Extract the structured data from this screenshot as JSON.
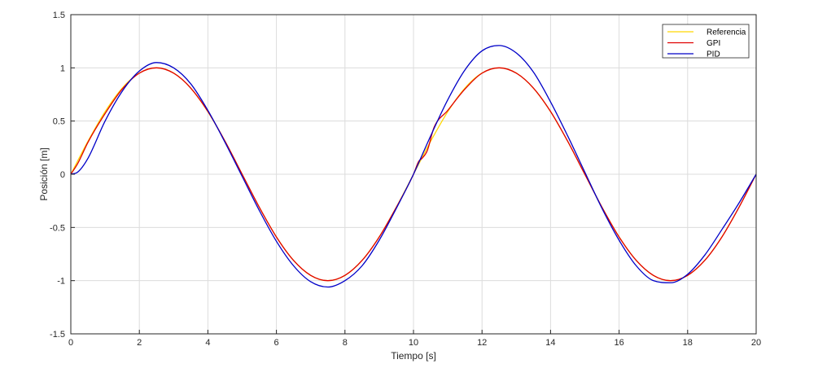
{
  "chart_data": {
    "type": "line",
    "title": "",
    "xlabel": "Tiempo [s]",
    "ylabel": "Posición [m]",
    "xlim": [
      0,
      20
    ],
    "ylim": [
      -1.5,
      1.5
    ],
    "xticks": [
      0,
      2,
      4,
      6,
      8,
      10,
      12,
      14,
      16,
      18,
      20
    ],
    "yticks": [
      -1.5,
      -1,
      -0.5,
      0,
      0.5,
      1,
      1.5
    ],
    "grid": true,
    "legend_position": "top-right",
    "series": [
      {
        "name": "Referencia",
        "color": "#ffd700",
        "x": [
          0,
          0.5,
          1,
          1.5,
          2,
          2.5,
          3,
          3.5,
          4,
          4.5,
          5,
          5.5,
          6,
          6.5,
          7,
          7.5,
          8,
          8.5,
          9,
          9.5,
          10,
          10.5,
          11,
          11.5,
          12,
          12.5,
          13,
          13.5,
          14,
          14.5,
          15,
          15.5,
          16,
          16.5,
          17,
          17.5,
          18,
          18.5,
          19,
          19.5,
          20
        ],
        "values": [
          0,
          0.309,
          0.588,
          0.809,
          0.951,
          1,
          0.951,
          0.809,
          0.588,
          0.309,
          0,
          -0.309,
          -0.588,
          -0.809,
          -0.951,
          -1,
          -0.951,
          -0.809,
          -0.588,
          -0.309,
          0,
          0.309,
          0.588,
          0.809,
          0.951,
          1,
          0.951,
          0.809,
          0.588,
          0.309,
          0,
          -0.309,
          -0.588,
          -0.809,
          -0.951,
          -1,
          -0.951,
          -0.809,
          -0.588,
          -0.309,
          0
        ]
      },
      {
        "name": "GPI",
        "color": "#e00000",
        "x": [
          0,
          0.2,
          0.5,
          1,
          1.5,
          2,
          2.5,
          3,
          3.5,
          4,
          4.5,
          5,
          5.5,
          6,
          6.5,
          7,
          7.5,
          8,
          8.5,
          9,
          9.5,
          10,
          10.15,
          10.25,
          10.4,
          10.6,
          11,
          11.5,
          12,
          12.5,
          13,
          13.5,
          14,
          14.5,
          15,
          15.5,
          16,
          16.5,
          17,
          17.5,
          18,
          18.5,
          19,
          19.5,
          20
        ],
        "values": [
          0,
          0.1,
          0.3,
          0.57,
          0.8,
          0.95,
          1,
          0.95,
          0.81,
          0.59,
          0.31,
          0,
          -0.31,
          -0.59,
          -0.81,
          -0.95,
          -1,
          -0.95,
          -0.81,
          -0.59,
          -0.31,
          0,
          0.12,
          0.15,
          0.22,
          0.44,
          0.6,
          0.8,
          0.95,
          1,
          0.95,
          0.81,
          0.59,
          0.31,
          0,
          -0.31,
          -0.59,
          -0.81,
          -0.95,
          -1,
          -0.95,
          -0.81,
          -0.59,
          -0.31,
          0
        ]
      },
      {
        "name": "PID",
        "color": "#0000c8",
        "x": [
          0,
          0.2,
          0.5,
          1,
          1.5,
          2,
          2.5,
          3,
          3.5,
          4,
          4.5,
          5,
          5.5,
          6,
          6.5,
          7,
          7.5,
          8,
          8.5,
          9,
          9.5,
          10,
          10.5,
          11,
          11.5,
          12,
          12.5,
          13,
          13.5,
          14,
          14.5,
          15,
          15.5,
          16,
          16.5,
          17,
          17.5,
          18,
          18.5,
          19,
          19.5,
          20
        ],
        "values": [
          0,
          0.02,
          0.15,
          0.5,
          0.78,
          0.97,
          1.05,
          1.0,
          0.85,
          0.6,
          0.3,
          -0.02,
          -0.34,
          -0.63,
          -0.86,
          -1.01,
          -1.06,
          -1.0,
          -0.86,
          -0.62,
          -0.32,
          0,
          0.36,
          0.7,
          0.98,
          1.16,
          1.21,
          1.14,
          0.96,
          0.68,
          0.36,
          0.02,
          -0.32,
          -0.62,
          -0.86,
          -1.0,
          -1.02,
          -0.94,
          -0.76,
          -0.52,
          -0.27,
          0
        ]
      }
    ]
  }
}
